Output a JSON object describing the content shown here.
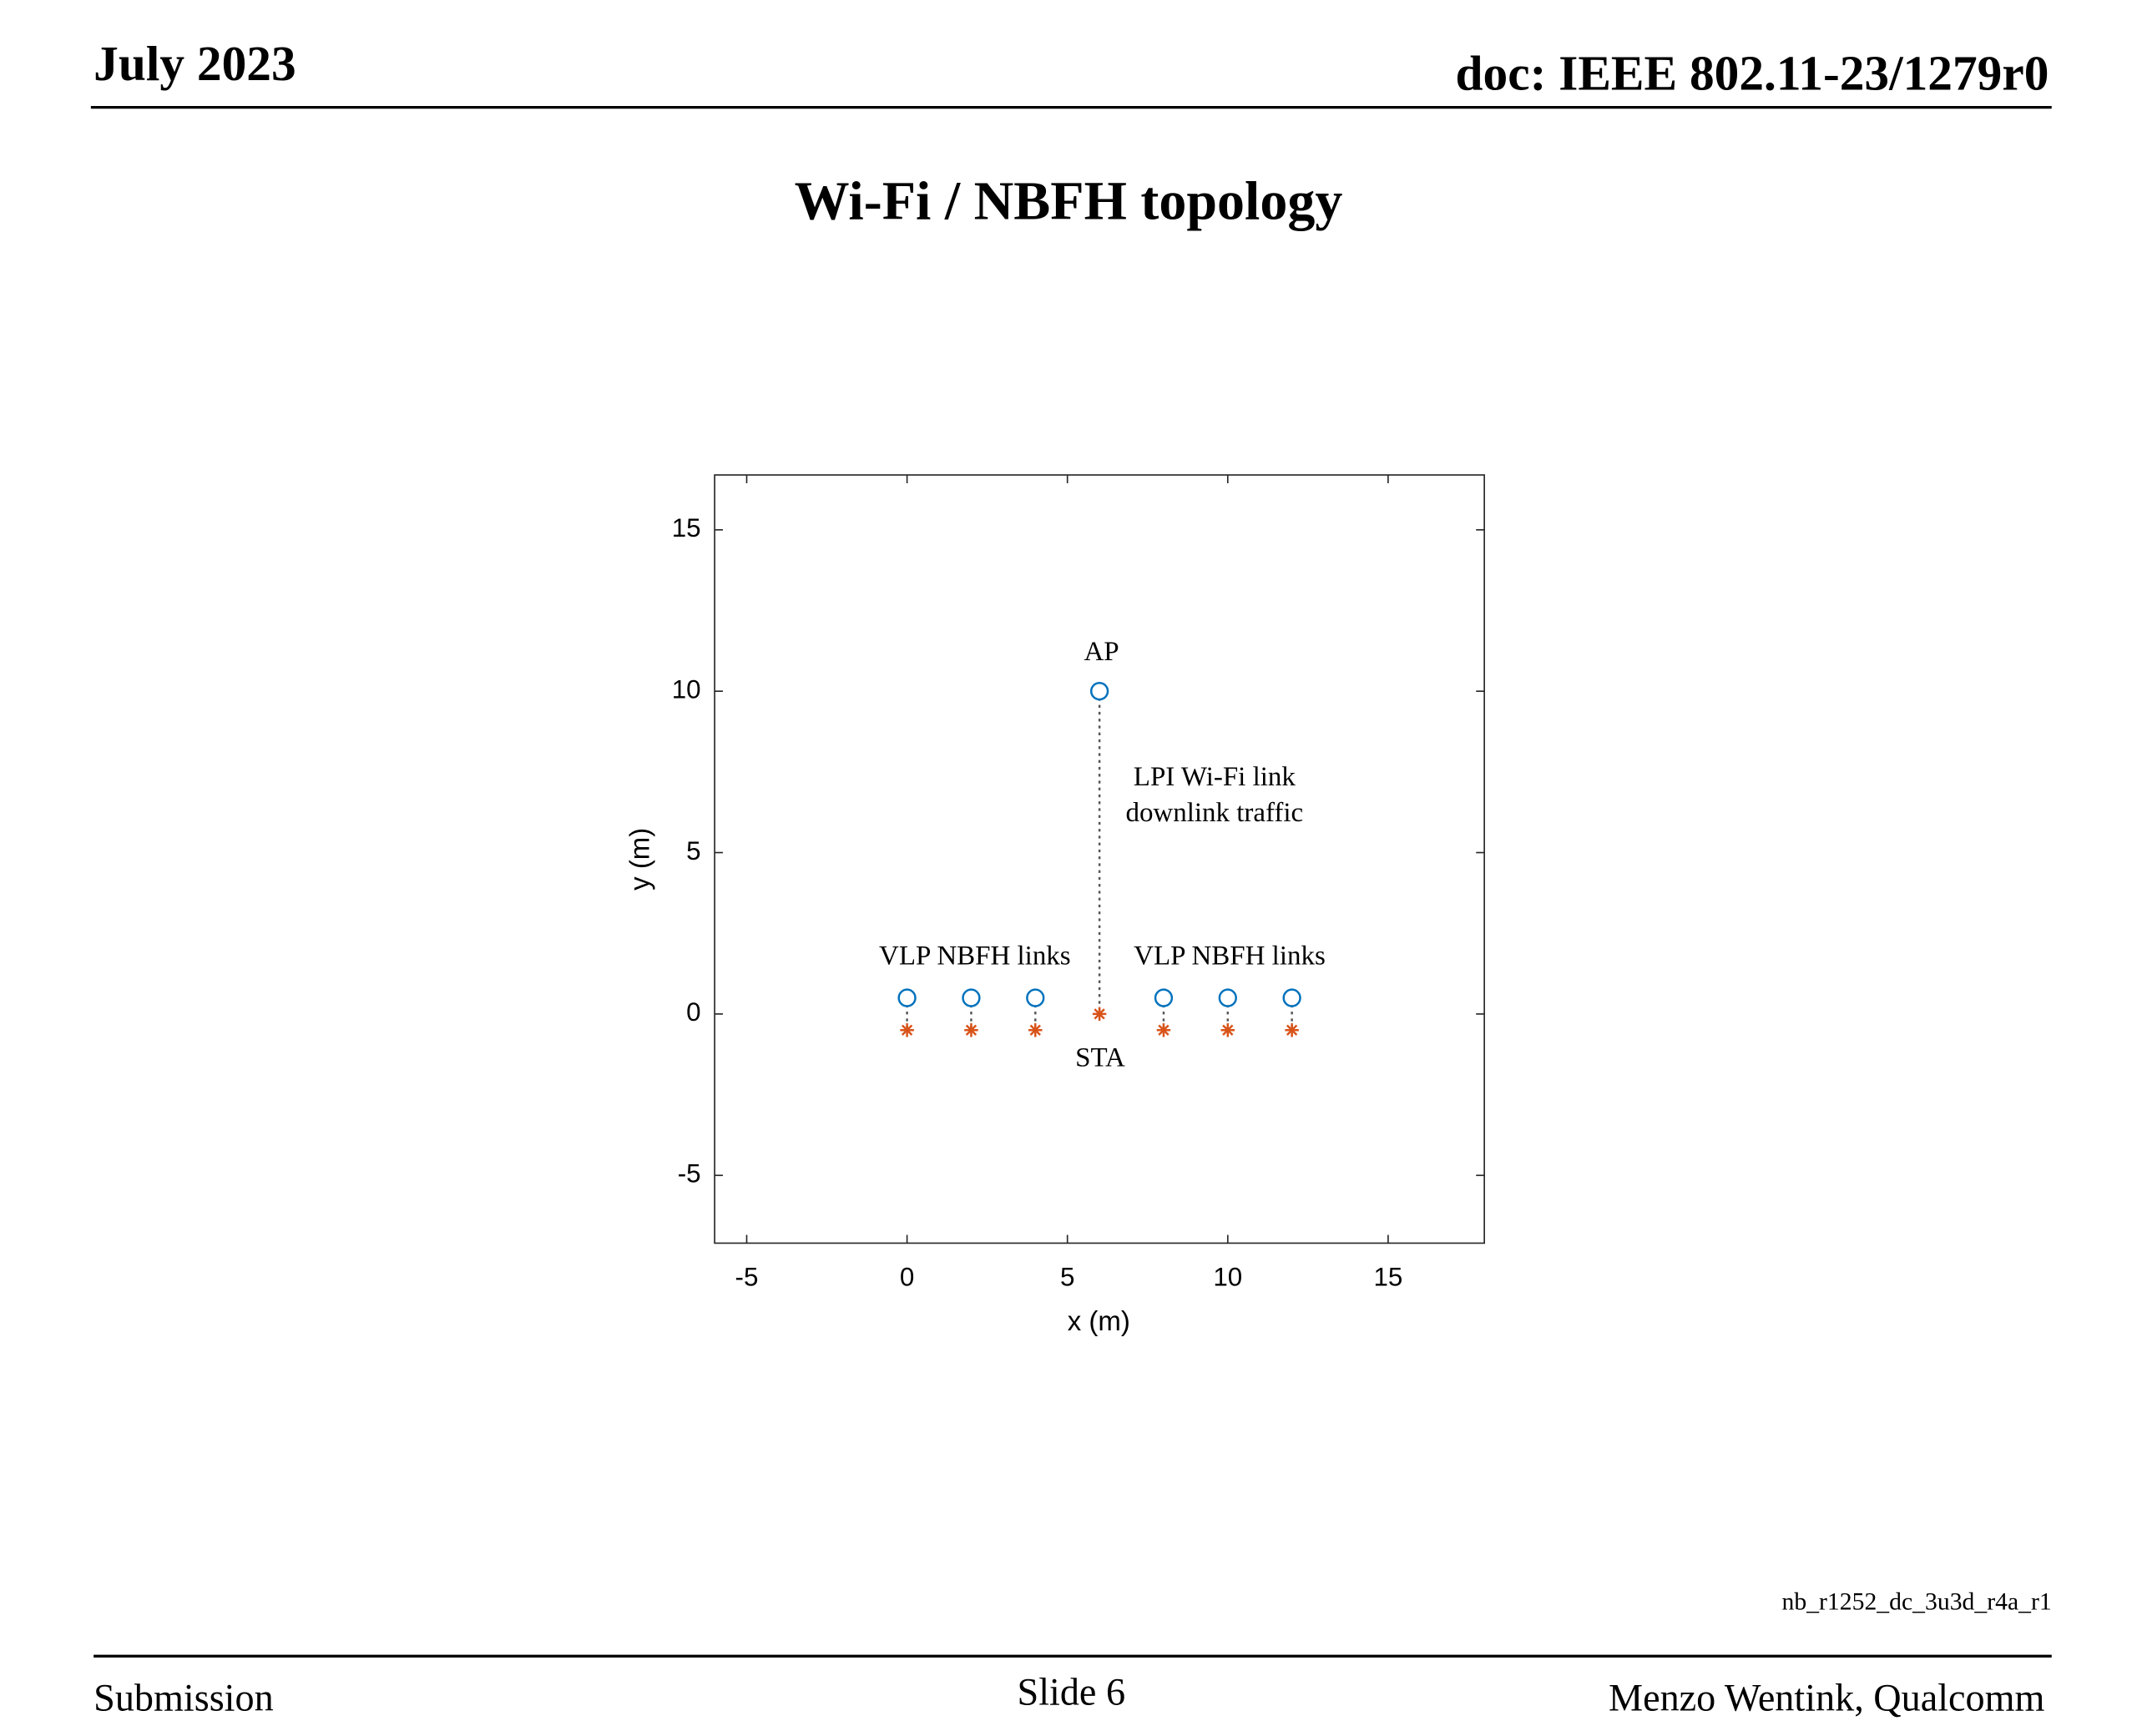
{
  "header": {
    "date": "July 2023",
    "doc": "doc: IEEE 802.11-23/1279r0"
  },
  "footer": {
    "file": "nb_r1252_dc_3u3d_r4a_r1",
    "left": "Submission",
    "center": "Slide 6",
    "right": "Menzo Wentink, Qualcomm"
  },
  "chart_data": {
    "type": "scatter",
    "title": "Wi-Fi / NBFH topology",
    "x_label": "x (m)",
    "y_label": "y (m)",
    "series": [
      {
        "color": "#0072bd",
        "marker": "circle",
        "x": [
          0,
          2,
          4,
          6,
          8,
          10,
          12
        ],
        "values": [
          0.5,
          0.5,
          0.5,
          10,
          0.5,
          0.5,
          0.5
        ]
      },
      {
        "color": "#d95319",
        "marker": "star",
        "x": [
          0,
          2,
          4,
          6,
          8,
          10,
          12
        ],
        "values": [
          -0.5,
          -0.5,
          -0.5,
          0,
          -0.5,
          -0.5,
          -0.5
        ]
      }
    ],
    "annotations": [
      "AP",
      "LPI Wi-Fi link",
      "downlink traffic",
      "VLP NBFH links",
      "VLP NBFH links",
      "STA"
    ],
    "xlim": [
      -6,
      18
    ],
    "ylim": [
      -7.1,
      16.7
    ],
    "xticks": [
      -5,
      0,
      5,
      10,
      15
    ],
    "yticks": [
      -5,
      0,
      5,
      10,
      15
    ],
    "grid": false
  }
}
